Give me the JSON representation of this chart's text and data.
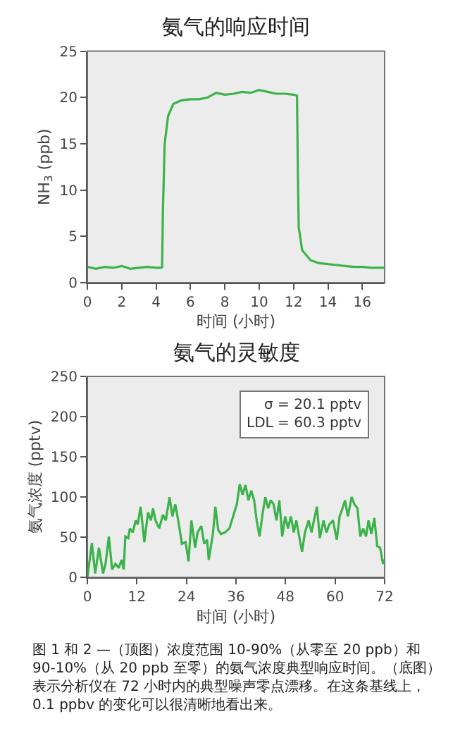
{
  "chart_data": [
    {
      "type": "line",
      "title": "氨气的响应时间",
      "xlabel": "时间 (小时)",
      "ylabel": "NH$_{3}$ (ppb)",
      "x": [
        0,
        0.5,
        1,
        1.5,
        2,
        2.5,
        3,
        3.5,
        4,
        4.3,
        4.35,
        4.4,
        4.5,
        4.7,
        5,
        5.5,
        6,
        6.5,
        7,
        7.5,
        8,
        8.5,
        9,
        9.5,
        10,
        10.5,
        11,
        11.5,
        12,
        12.2,
        12.25,
        12.3,
        12.5,
        13,
        13.5,
        14,
        14.5,
        15,
        15.5,
        16,
        16.5,
        17.3
      ],
      "series": [
        {
          "color": "#3cb34a",
          "values": [
            1.7,
            1.5,
            1.7,
            1.6,
            1.8,
            1.5,
            1.6,
            1.7,
            1.6,
            1.6,
            1.7,
            8,
            15,
            18,
            19.3,
            19.7,
            19.8,
            19.8,
            20,
            20.5,
            20.3,
            20.4,
            20.6,
            20.5,
            20.8,
            20.6,
            20.4,
            20.4,
            20.3,
            20.2,
            12,
            6,
            3.5,
            2.4,
            2.1,
            2.0,
            1.9,
            1.8,
            1.7,
            1.7,
            1.6,
            1.6
          ]
        }
      ],
      "xlim": [
        0,
        17.3
      ],
      "xticks": [
        0,
        2,
        4,
        6,
        8,
        10,
        12,
        14,
        16
      ],
      "ylim": [
        0,
        25
      ],
      "yticks": [
        0,
        5,
        10,
        15,
        20,
        25
      ]
    },
    {
      "type": "line",
      "title": "氨气的灵敏度",
      "xlabel": "时间 (小时)",
      "ylabel": "氨气浓度 (pptv)",
      "x": [
        0,
        1.1,
        1.9,
        2.8,
        3.8,
        4.4,
        5.2,
        6,
        6.8,
        7.6,
        8.3,
        8.8,
        9.2,
        9.9,
        10.3,
        11,
        11.7,
        12.2,
        12.9,
        13.8,
        14.7,
        15.4,
        15.9,
        16.5,
        17.4,
        18.3,
        19,
        19.9,
        20.6,
        21.3,
        22,
        22.9,
        23.8,
        24.5,
        25.2,
        26.1,
        26.7,
        27.6,
        28.3,
        29,
        29.4,
        30.4,
        31,
        31.7,
        32.4,
        33.3,
        34.4,
        35.3,
        36.2,
        36.9,
        37.6,
        38.3,
        39,
        39.7,
        40.4,
        41,
        41.7,
        42.4,
        43.1,
        43.8,
        44.4,
        45.1,
        45.8,
        46.5,
        47.2,
        47.9,
        48.6,
        49.3,
        50,
        50.6,
        51.3,
        52,
        52.7,
        53.6,
        54.3,
        55,
        55.6,
        56.3,
        57.2,
        57.9,
        58.6,
        59.5,
        60.4,
        61.1,
        61.8,
        62.4,
        63.1,
        64,
        64.7,
        65.4,
        66.1,
        66.8,
        67.5,
        68.1,
        68.8,
        69.5,
        70.2,
        70.9,
        71.6,
        72
      ],
      "series": [
        {
          "color": "#3cb34a",
          "values": [
            0,
            43,
            5,
            37,
            5,
            17,
            51,
            10,
            17,
            12,
            22,
            10,
            51,
            49,
            61,
            56,
            71,
            66,
            88,
            44,
            81,
            71,
            86,
            71,
            61,
            78,
            71,
            100,
            76,
            91,
            71,
            42,
            44,
            20,
            71,
            37,
            56,
            64,
            42,
            47,
            22,
            54,
            88,
            59,
            54,
            56,
            61,
            76,
            91,
            116,
            103,
            115,
            96,
            108,
            96,
            71,
            51,
            78,
            100,
            86,
            96,
            91,
            71,
            96,
            51,
            76,
            61,
            76,
            56,
            71,
            51,
            32,
            56,
            71,
            56,
            74,
            88,
            49,
            71,
            56,
            66,
            71,
            47,
            76,
            86,
            96,
            76,
            100,
            91,
            86,
            51,
            61,
            51,
            71,
            54,
            74,
            39,
            37,
            17,
            22
          ]
        }
      ],
      "xlim": [
        0,
        72
      ],
      "xticks": [
        0,
        12,
        24,
        36,
        48,
        60,
        72
      ],
      "ylim": [
        0,
        250
      ],
      "yticks": [
        0,
        50,
        100,
        150,
        200,
        250
      ],
      "annotations": [
        "σ = 20.1 pptv",
        "LDL = 60.3 pptv",
        "图 1 和 2 —（顶图）浓度范围 10-90%（从零至 20 ppb）和 90-10%（从 20 ppb 至零）的氨气浓度典型响应时间。（底图）表示分析仪在 72 小时内的典型噪声零点漂移。在这条基线上，0.1 ppbv 的变化可以很清晰地看出来。"
      ]
    }
  ]
}
